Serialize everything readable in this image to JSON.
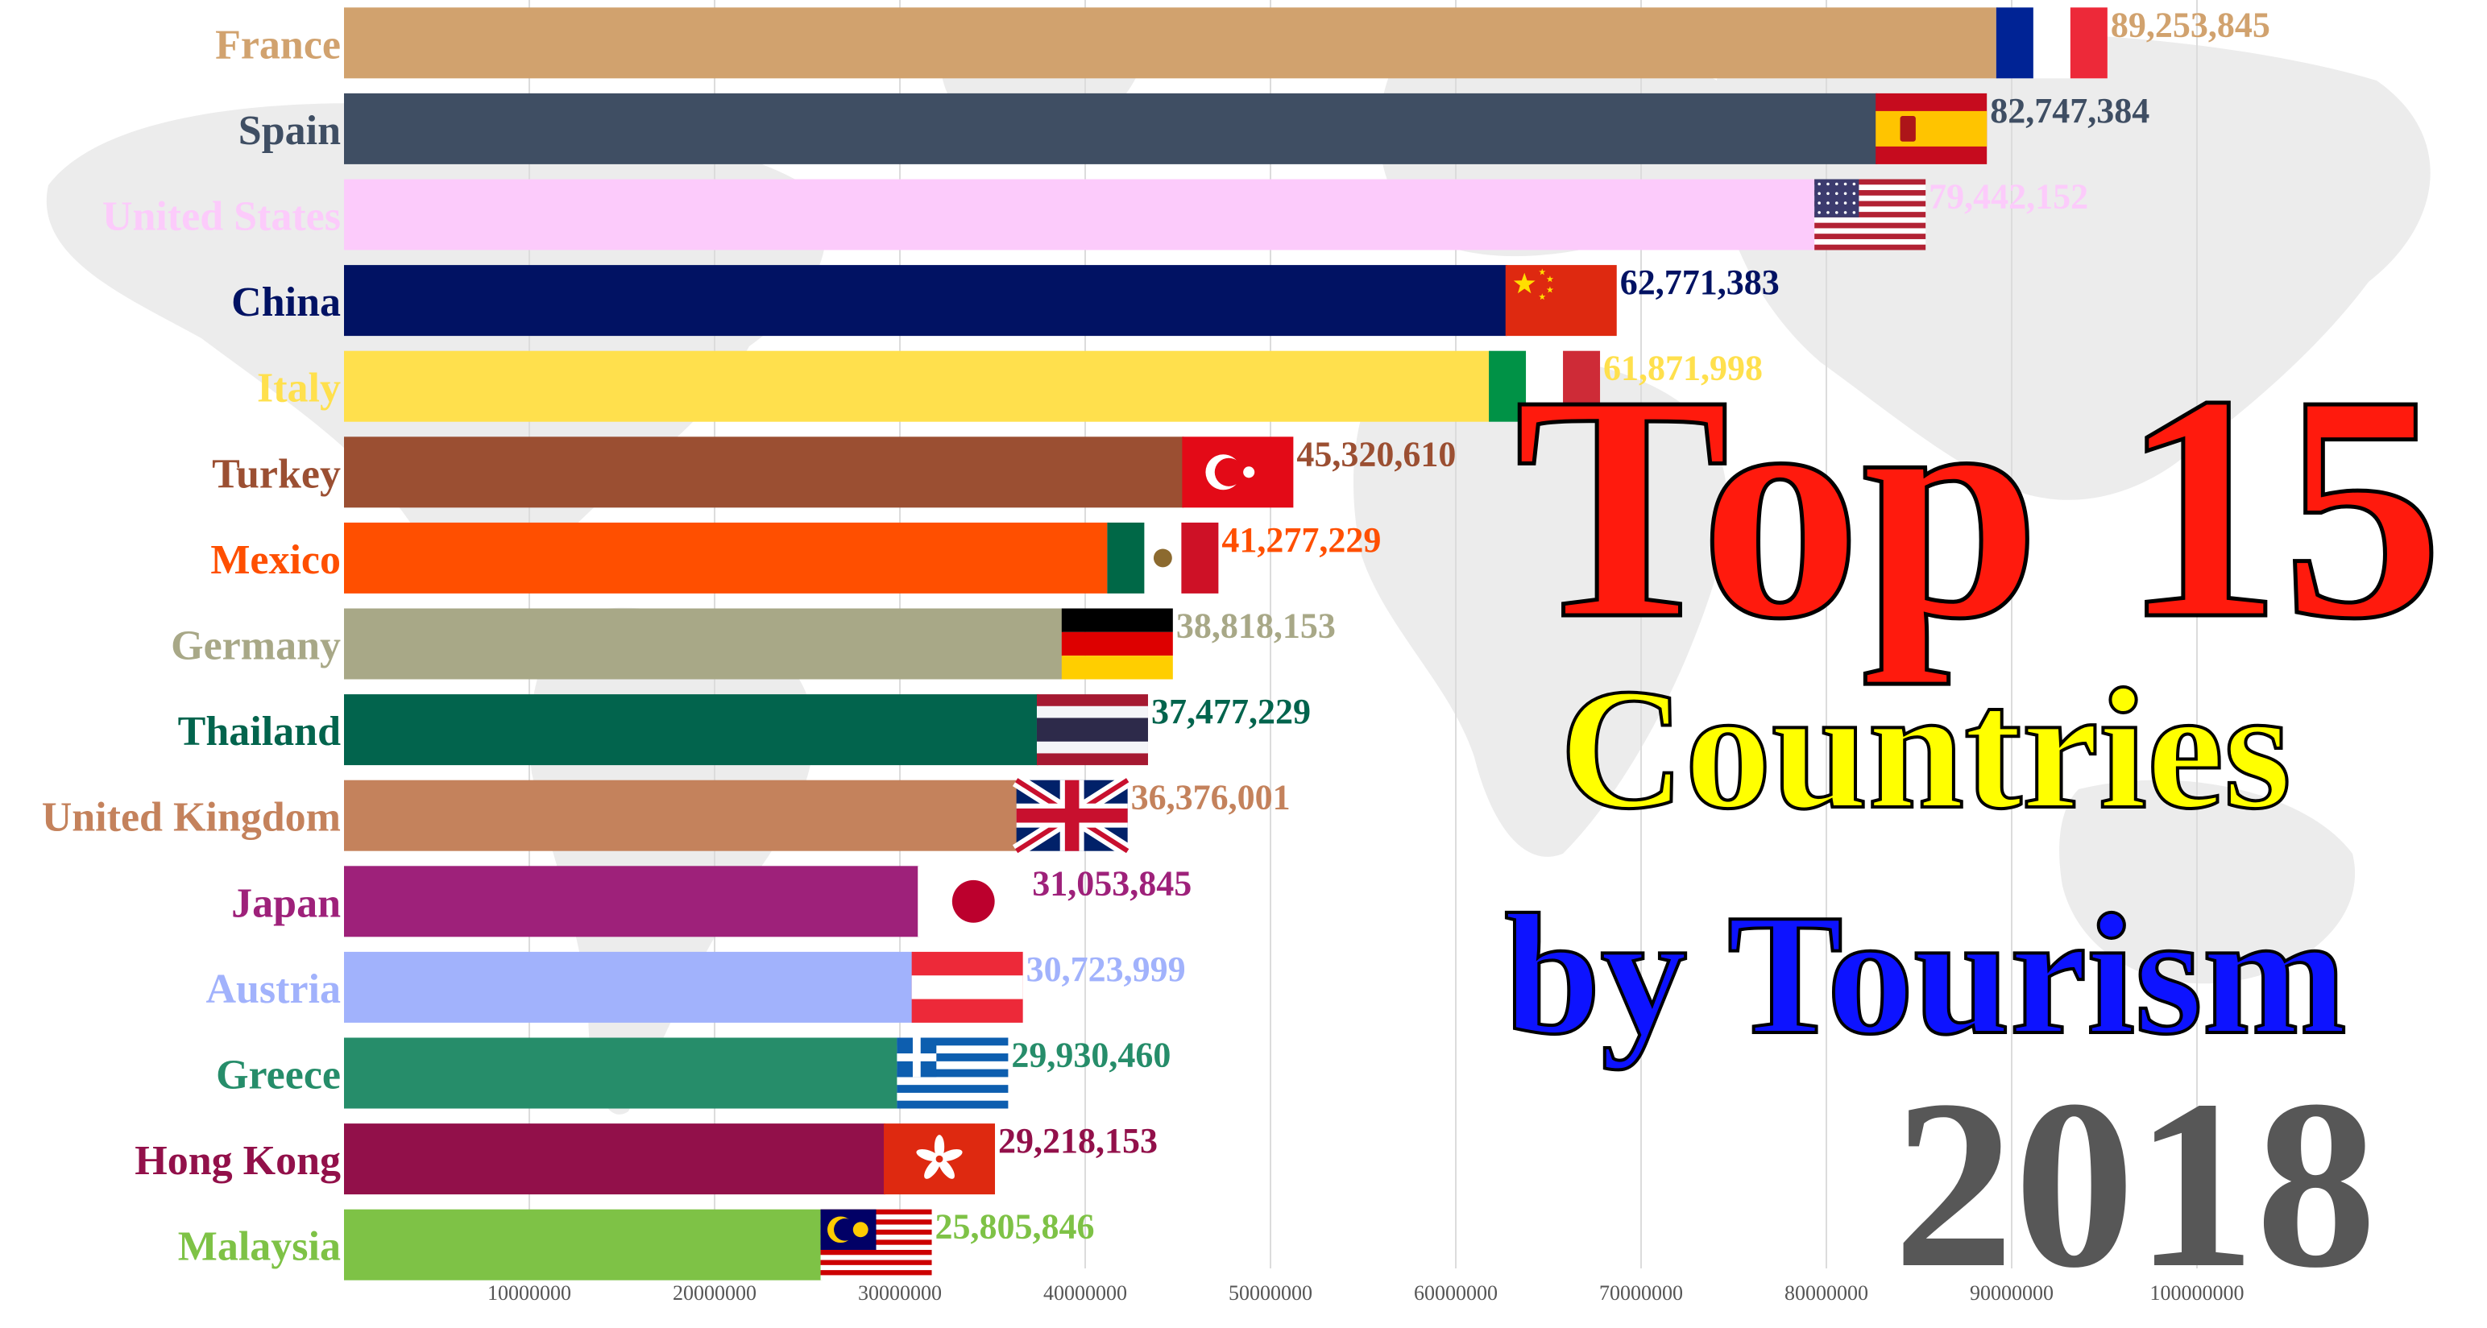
{
  "caption": {
    "line1": "Top 15",
    "line2": "Countries",
    "line3": "by Tourism",
    "year": "2018"
  },
  "colors": {
    "grid": "#dcdcdc",
    "tick_text": "#555555",
    "map": "#ececec"
  },
  "chart_data": {
    "type": "bar",
    "orientation": "horizontal",
    "title": "",
    "xlabel": "",
    "ylabel": "",
    "xlim": [
      0,
      100000000
    ],
    "xticks": [
      10000000,
      20000000,
      30000000,
      40000000,
      50000000,
      60000000,
      70000000,
      80000000,
      90000000,
      100000000
    ],
    "grid": true,
    "categories": [
      "France",
      "Spain",
      "United States",
      "China",
      "Italy",
      "Turkey",
      "Mexico",
      "Germany",
      "Thailand",
      "United Kingdom",
      "Japan",
      "Austria",
      "Greece",
      "Hong Kong",
      "Malaysia"
    ],
    "values": [
      89253845,
      82747384,
      79442152,
      62771383,
      61871998,
      45320610,
      41277229,
      38818153,
      37477229,
      36376001,
      31053845,
      30723999,
      29930460,
      29218153,
      25805846
    ],
    "value_labels": [
      "89,253,845",
      "82,747,384",
      "79,442,152",
      "62,771,383",
      "61,871,998",
      "45,320,610",
      "41,277,229",
      "38,818,153",
      "37,477,229",
      "36,376,001",
      "31,053,845",
      "30,723,999",
      "29,930,460",
      "29,218,153",
      "25,805,846"
    ],
    "colors": [
      "#d1a26e",
      "#3f4e63",
      "#fccbfb",
      "#011263",
      "#ffe04d",
      "#9b4f32",
      "#ff4f00",
      "#a8a887",
      "#02644d",
      "#c4825c",
      "#9e217a",
      "#a1b2fc",
      "#268d6a",
      "#92104a",
      "#7ec246"
    ],
    "flags": [
      "france-flag-icon",
      "spain-flag-icon",
      "usa-flag-icon",
      "china-flag-icon",
      "italy-flag-icon",
      "turkey-flag-icon",
      "mexico-flag-icon",
      "germany-flag-icon",
      "thailand-flag-icon",
      "uk-flag-icon",
      "japan-flag-icon",
      "austria-flag-icon",
      "greece-flag-icon",
      "hongkong-flag-icon",
      "malaysia-flag-icon"
    ]
  }
}
